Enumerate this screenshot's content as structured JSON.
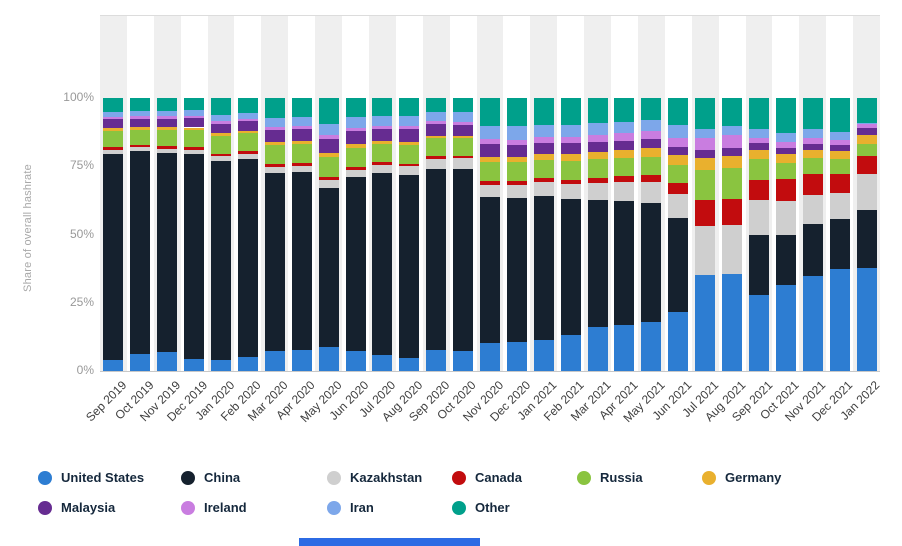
{
  "y_axis_title": "Share of overall hashrate",
  "footer": {
    "bottom_banner_color": "#2c6be4"
  },
  "layout_colors": {
    "column_band": "#efefef",
    "axis_line": "#c8c8c8",
    "tick_text": "#999999",
    "x_label_text": "#404040",
    "legend_text": "#15283c"
  },
  "chart_data": {
    "type": "bar",
    "stacked": true,
    "title": "",
    "xlabel": "",
    "ylabel": "Share of overall hashrate",
    "ylim": [
      0,
      100
    ],
    "y_ticks": [
      "0%",
      "25%",
      "50%",
      "75%",
      "100%"
    ],
    "y_tick_values": [
      0,
      25,
      50,
      75,
      100
    ],
    "grid": "alternating-vertical-bands",
    "legend_position": "bottom",
    "categories": [
      "Sep 2019",
      "Oct 2019",
      "Nov 2019",
      "Dec 2019",
      "Jan 2020",
      "Feb 2020",
      "Mar 2020",
      "Apr 2020",
      "May 2020",
      "Jun 2020",
      "Jul 2020",
      "Aug 2020",
      "Sep 2020",
      "Oct 2020",
      "Nov 2020",
      "Dec 2020",
      "Jan 2021",
      "Feb 2021",
      "Mar 2021",
      "Apr 2021",
      "May 2021",
      "Jun 2021",
      "Jul 2021",
      "Aug 2021",
      "Sep 2021",
      "Oct 2021",
      "Nov 2021",
      "Dec 2021",
      "Jan 2022"
    ],
    "series": [
      {
        "name": "United States",
        "color": "#2d7dd2",
        "values": [
          4.1,
          6.1,
          7.0,
          4.4,
          4.0,
          5.0,
          7.3,
          7.8,
          8.9,
          7.2,
          6.0,
          4.9,
          7.7,
          7.5,
          10.4,
          10.6,
          11.2,
          13.3,
          16.0,
          16.8,
          17.8,
          21.8,
          35.0,
          35.4,
          27.7,
          31.6,
          34.9,
          37.4,
          37.8
        ]
      },
      {
        "name": "China",
        "color": "#15212e",
        "values": [
          75.5,
          74.4,
          73.0,
          75.0,
          72.9,
          72.8,
          65.1,
          65.0,
          58.3,
          63.8,
          66.4,
          66.8,
          66.3,
          66.5,
          53.2,
          52.7,
          53.0,
          49.6,
          46.6,
          45.4,
          43.9,
          34.2,
          0.0,
          0.0,
          22.3,
          18.3,
          18.9,
          18.3,
          21.1
        ]
      },
      {
        "name": "Kazakhstan",
        "color": "#cfcfcf",
        "values": [
          1.4,
          1.4,
          1.5,
          1.6,
          1.7,
          1.8,
          2.2,
          2.3,
          2.6,
          2.7,
          2.9,
          3.3,
          3.6,
          3.9,
          4.6,
          4.8,
          5.1,
          5.7,
          6.3,
          7.0,
          7.7,
          8.8,
          18.0,
          18.1,
          12.5,
          12.3,
          10.5,
          9.5,
          13.2
        ]
      },
      {
        "name": "Canada",
        "color": "#c20c0e",
        "values": [
          1.1,
          0.9,
          1.0,
          0.9,
          1.0,
          1.0,
          1.2,
          1.1,
          1.3,
          1.2,
          1.1,
          1.0,
          1.0,
          0.9,
          1.3,
          1.4,
          1.3,
          1.5,
          1.8,
          2.2,
          2.5,
          4.0,
          9.5,
          9.6,
          7.5,
          8.0,
          7.8,
          7.0,
          6.5
        ]
      },
      {
        "name": "Russia",
        "color": "#8ac440",
        "values": [
          5.9,
          5.6,
          5.9,
          6.4,
          6.6,
          6.5,
          6.9,
          6.8,
          7.3,
          6.9,
          6.8,
          6.9,
          6.6,
          6.4,
          7.1,
          6.9,
          6.8,
          6.9,
          6.8,
          6.6,
          6.6,
          6.8,
          11.0,
          11.2,
          7.5,
          6.0,
          5.8,
          5.5,
          4.7
        ]
      },
      {
        "name": "Germany",
        "color": "#e9b02e",
        "values": [
          0.9,
          0.9,
          0.9,
          0.9,
          0.9,
          0.9,
          1.2,
          1.1,
          1.4,
          1.2,
          1.1,
          1.1,
          1.0,
          1.0,
          1.8,
          2.0,
          2.1,
          2.5,
          2.8,
          3.0,
          3.2,
          3.6,
          4.5,
          4.5,
          3.5,
          3.3,
          3.2,
          3.0,
          3.1
        ]
      },
      {
        "name": "Malaysia",
        "color": "#662c91",
        "values": [
          3.3,
          3.1,
          3.1,
          3.3,
          3.5,
          3.4,
          4.3,
          4.4,
          5.1,
          4.8,
          4.5,
          4.6,
          4.3,
          4.0,
          4.7,
          4.4,
          4.0,
          3.9,
          3.6,
          3.4,
          3.2,
          3.0,
          3.0,
          3.0,
          2.5,
          2.3,
          2.2,
          2.0,
          2.5
        ]
      },
      {
        "name": "Ireland",
        "color": "#c97de0",
        "values": [
          0.8,
          0.9,
          0.9,
          0.9,
          0.9,
          0.9,
          1.2,
          1.1,
          1.4,
          1.2,
          1.1,
          1.1,
          1.0,
          1.0,
          1.8,
          2.0,
          2.1,
          2.3,
          2.5,
          2.7,
          2.9,
          3.2,
          4.5,
          4.7,
          2.0,
          2.0,
          1.9,
          1.8,
          2.0
        ]
      },
      {
        "name": "Iran",
        "color": "#7da7ea",
        "values": [
          1.7,
          1.8,
          2.0,
          2.1,
          2.2,
          2.2,
          3.2,
          3.4,
          4.3,
          3.9,
          3.6,
          3.8,
          3.5,
          3.6,
          5.0,
          4.9,
          4.6,
          4.5,
          4.3,
          4.1,
          4.0,
          4.6,
          3.0,
          3.1,
          3.0,
          3.5,
          3.3,
          3.2,
          0.1
        ]
      },
      {
        "name": "Other",
        "color": "#00a08b",
        "values": [
          5.3,
          4.9,
          4.7,
          4.5,
          6.3,
          5.5,
          7.4,
          7.0,
          9.4,
          7.1,
          6.5,
          6.5,
          5.0,
          5.2,
          10.1,
          10.3,
          9.8,
          9.8,
          9.3,
          8.8,
          8.2,
          10.0,
          11.5,
          10.4,
          11.5,
          12.7,
          11.5,
          12.3,
          9.0
        ]
      }
    ]
  }
}
